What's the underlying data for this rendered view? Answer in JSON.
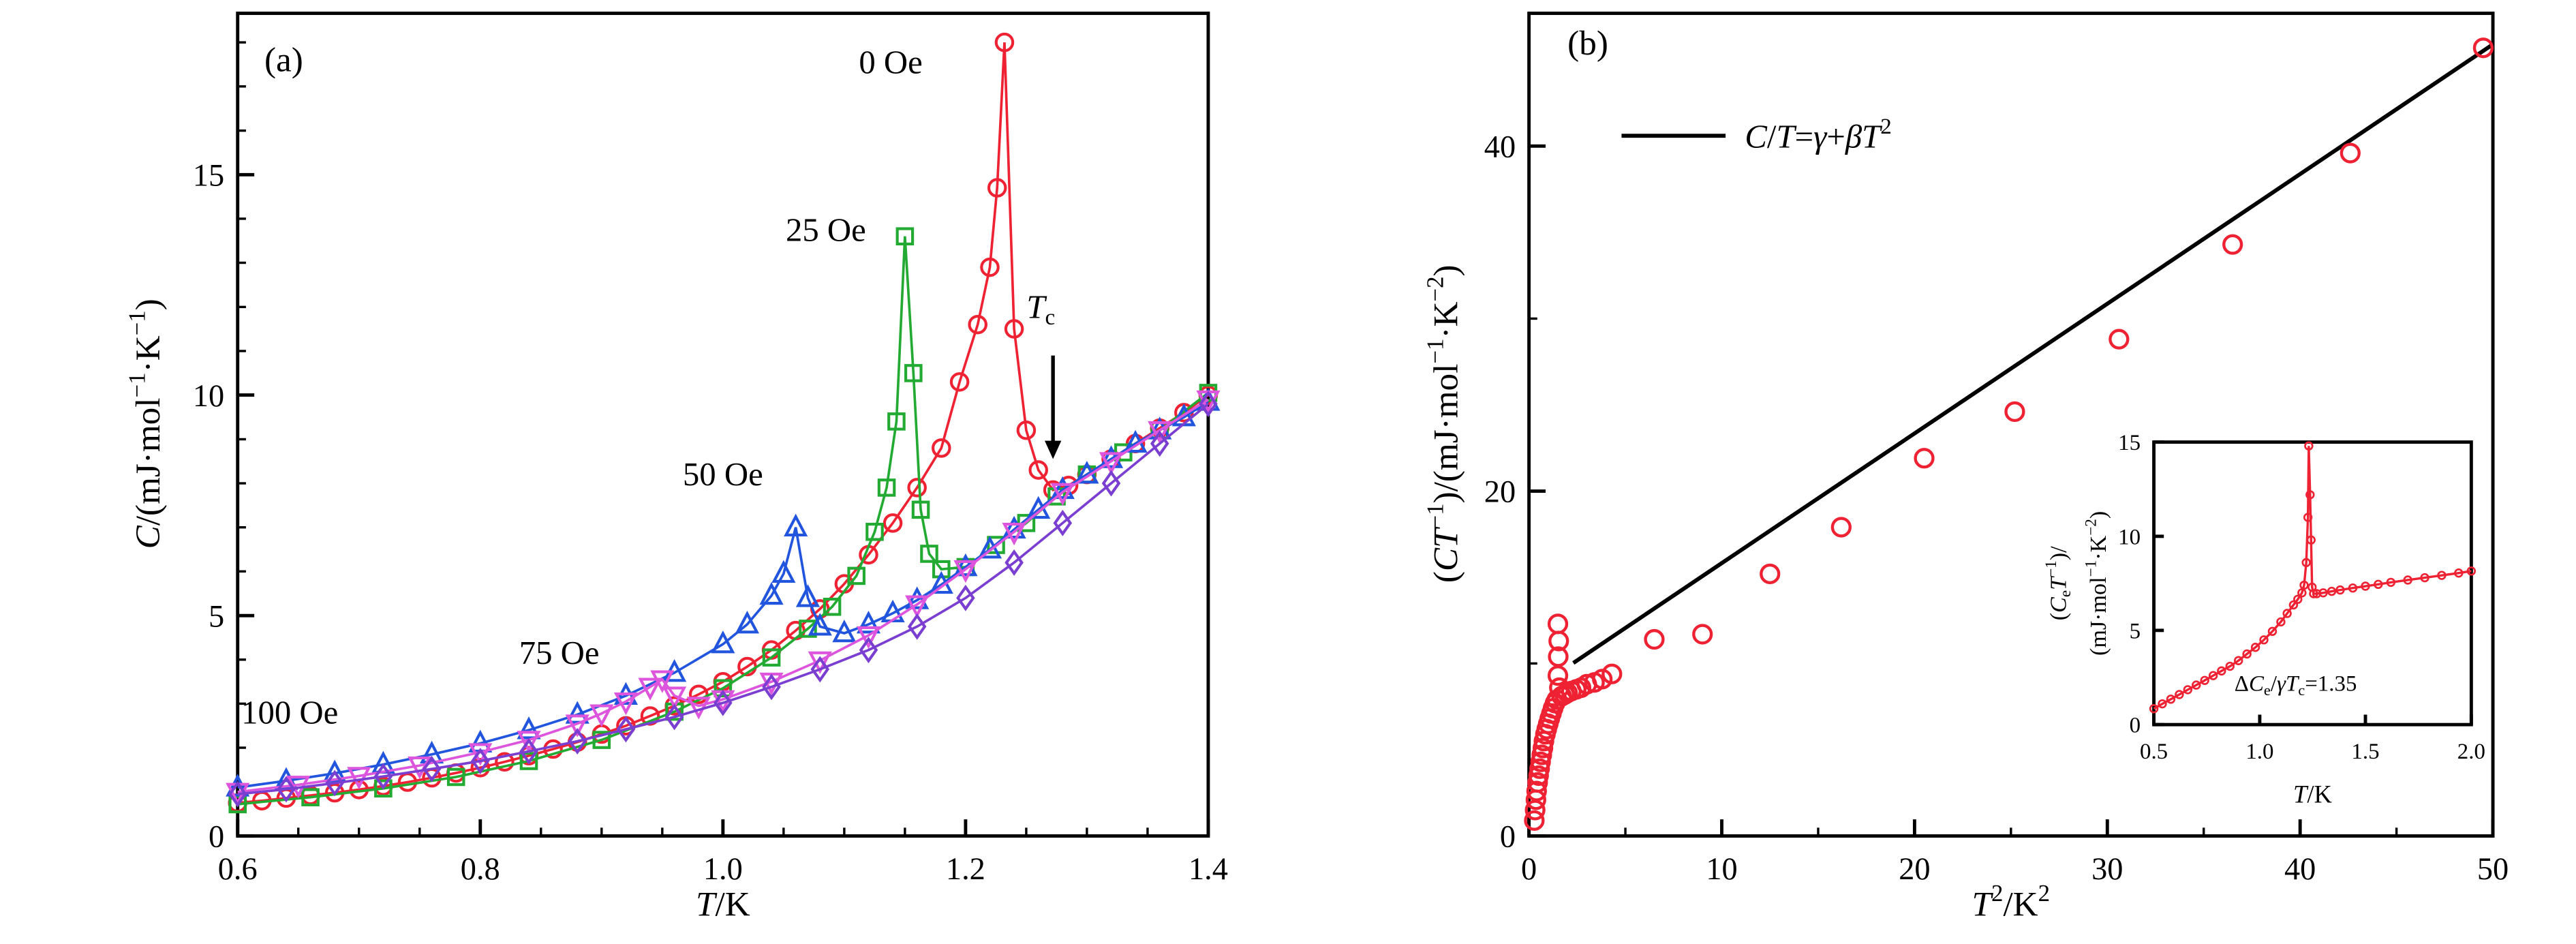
{
  "chart_data": [
    {
      "id": "a",
      "type": "line",
      "panel_label": "(a)",
      "panel_label_pos": [
        0.622,
        17.35
      ],
      "xlabel": "*T*/K",
      "ylabel": "*C*/(mJ·mol^{−1}·K^{−1})",
      "xlim": [
        0.6,
        1.4
      ],
      "ylim": [
        0,
        18.66
      ],
      "xtick_values": [
        0.6,
        0.8,
        1.0,
        1.2,
        1.4
      ],
      "xtick_labels": [
        "0.6",
        "0.8",
        "1.0",
        "1.2",
        "1.4"
      ],
      "ytick_values": [
        0,
        5,
        10,
        15
      ],
      "ytick_labels": [
        "0",
        "5",
        "10",
        "15"
      ],
      "x_minor_step": 0.05,
      "y_minor_step": 1,
      "tc_annotation": {
        "text": "*T*_{c}",
        "x": 1.272,
        "y_from": 10.9,
        "y_to": 8.55,
        "label_x": 1.262,
        "label_y": 11.75
      },
      "series": [
        {
          "name": "0 Oe",
          "marker": "circle",
          "color": "#ee2233",
          "label": "0 Oe",
          "label_pos": [
            1.112,
            17.3
          ],
          "label_anchor": "start",
          "points": [
            [
              0.6,
              0.75
            ],
            [
              0.62,
              0.8
            ],
            [
              0.64,
              0.86
            ],
            [
              0.66,
              0.92
            ],
            [
              0.68,
              0.98
            ],
            [
              0.7,
              1.05
            ],
            [
              0.72,
              1.13
            ],
            [
              0.74,
              1.22
            ],
            [
              0.76,
              1.32
            ],
            [
              0.78,
              1.43
            ],
            [
              0.8,
              1.55
            ],
            [
              0.82,
              1.68
            ],
            [
              0.84,
              1.82
            ],
            [
              0.86,
              1.97
            ],
            [
              0.88,
              2.13
            ],
            [
              0.9,
              2.31
            ],
            [
              0.92,
              2.5
            ],
            [
              0.94,
              2.72
            ],
            [
              0.96,
              2.95
            ],
            [
              0.98,
              3.21
            ],
            [
              1.0,
              3.5
            ],
            [
              1.02,
              3.84
            ],
            [
              1.04,
              4.22
            ],
            [
              1.06,
              4.66
            ],
            [
              1.08,
              5.15
            ],
            [
              1.1,
              5.72
            ],
            [
              1.12,
              6.38
            ],
            [
              1.14,
              7.1
            ],
            [
              1.16,
              7.9
            ],
            [
              1.18,
              8.8
            ],
            [
              1.195,
              10.3
            ],
            [
              1.21,
              11.6
            ],
            [
              1.22,
              12.9
            ],
            [
              1.226,
              14.7
            ],
            [
              1.232,
              18.0
            ],
            [
              1.24,
              11.5
            ],
            [
              1.25,
              9.2
            ],
            [
              1.26,
              8.3
            ],
            [
              1.272,
              7.85
            ],
            [
              1.285,
              7.95
            ],
            [
              1.3,
              8.2
            ],
            [
              1.32,
              8.55
            ],
            [
              1.34,
              8.9
            ],
            [
              1.36,
              9.25
            ],
            [
              1.38,
              9.6
            ],
            [
              1.4,
              10.0
            ]
          ]
        },
        {
          "name": "25 Oe",
          "marker": "square",
          "color": "#22aa33",
          "label": "25 Oe",
          "label_pos": [
            1.118,
            13.5
          ],
          "label_anchor": "end",
          "points": [
            [
              0.6,
              0.72
            ],
            [
              0.66,
              0.88
            ],
            [
              0.72,
              1.08
            ],
            [
              0.78,
              1.34
            ],
            [
              0.84,
              1.7
            ],
            [
              0.9,
              2.18
            ],
            [
              0.96,
              2.82
            ],
            [
              1.0,
              3.35
            ],
            [
              1.04,
              4.05
            ],
            [
              1.07,
              4.7
            ],
            [
              1.09,
              5.2
            ],
            [
              1.11,
              5.9
            ],
            [
              1.125,
              6.9
            ],
            [
              1.135,
              7.9
            ],
            [
              1.143,
              9.4
            ],
            [
              1.15,
              13.6
            ],
            [
              1.157,
              10.5
            ],
            [
              1.163,
              7.4
            ],
            [
              1.17,
              6.4
            ],
            [
              1.18,
              6.05
            ],
            [
              1.2,
              6.1
            ],
            [
              1.225,
              6.6
            ],
            [
              1.25,
              7.1
            ],
            [
              1.275,
              7.7
            ],
            [
              1.3,
              8.2
            ],
            [
              1.33,
              8.7
            ],
            [
              1.36,
              9.2
            ],
            [
              1.4,
              10.05
            ]
          ]
        },
        {
          "name": "50 Oe",
          "marker": "triangle-up",
          "color": "#2255dd",
          "label": "50 Oe",
          "label_pos": [
            1.0,
            7.95
          ],
          "label_anchor": "middle",
          "points": [
            [
              0.6,
              1.1
            ],
            [
              0.64,
              1.25
            ],
            [
              0.68,
              1.42
            ],
            [
              0.72,
              1.62
            ],
            [
              0.76,
              1.85
            ],
            [
              0.8,
              2.1
            ],
            [
              0.84,
              2.4
            ],
            [
              0.88,
              2.75
            ],
            [
              0.92,
              3.18
            ],
            [
              0.96,
              3.7
            ],
            [
              1.0,
              4.35
            ],
            [
              1.02,
              4.8
            ],
            [
              1.04,
              5.45
            ],
            [
              1.05,
              5.95
            ],
            [
              1.06,
              7.0
            ],
            [
              1.07,
              5.4
            ],
            [
              1.08,
              4.75
            ],
            [
              1.1,
              4.6
            ],
            [
              1.12,
              4.8
            ],
            [
              1.14,
              5.05
            ],
            [
              1.16,
              5.35
            ],
            [
              1.18,
              5.7
            ],
            [
              1.2,
              6.1
            ],
            [
              1.22,
              6.5
            ],
            [
              1.24,
              6.95
            ],
            [
              1.26,
              7.4
            ],
            [
              1.28,
              7.85
            ],
            [
              1.3,
              8.2
            ],
            [
              1.32,
              8.55
            ],
            [
              1.34,
              8.9
            ],
            [
              1.36,
              9.2
            ],
            [
              1.38,
              9.5
            ],
            [
              1.4,
              9.85
            ]
          ]
        },
        {
          "name": "75 Oe",
          "marker": "triangle-down",
          "color": "#dd55dd",
          "label": "75 Oe",
          "label_pos": [
            0.865,
            3.9
          ],
          "label_anchor": "middle",
          "points": [
            [
              0.6,
              1.0
            ],
            [
              0.65,
              1.16
            ],
            [
              0.7,
              1.36
            ],
            [
              0.75,
              1.6
            ],
            [
              0.8,
              1.9
            ],
            [
              0.84,
              2.18
            ],
            [
              0.88,
              2.55
            ],
            [
              0.9,
              2.78
            ],
            [
              0.92,
              3.05
            ],
            [
              0.94,
              3.38
            ],
            [
              0.95,
              3.55
            ],
            [
              0.96,
              3.18
            ],
            [
              0.98,
              2.95
            ],
            [
              1.0,
              3.1
            ],
            [
              1.04,
              3.5
            ],
            [
              1.08,
              3.98
            ],
            [
              1.12,
              4.55
            ],
            [
              1.16,
              5.25
            ],
            [
              1.2,
              6.05
            ],
            [
              1.24,
              6.9
            ],
            [
              1.28,
              7.8
            ],
            [
              1.32,
              8.5
            ],
            [
              1.36,
              9.2
            ],
            [
              1.4,
              9.9
            ]
          ]
        },
        {
          "name": "100 Oe",
          "marker": "diamond",
          "color": "#7a3fd1",
          "label": "100 Oe",
          "label_color": "#2b3fd1",
          "label_pos": [
            0.603,
            2.55
          ],
          "label_anchor": "start",
          "points": [
            [
              0.6,
              0.95
            ],
            [
              0.64,
              1.06
            ],
            [
              0.68,
              1.2
            ],
            [
              0.72,
              1.35
            ],
            [
              0.76,
              1.52
            ],
            [
              0.8,
              1.7
            ],
            [
              0.84,
              1.92
            ],
            [
              0.88,
              2.15
            ],
            [
              0.92,
              2.42
            ],
            [
              0.96,
              2.7
            ],
            [
              1.0,
              3.02
            ],
            [
              1.04,
              3.38
            ],
            [
              1.08,
              3.78
            ],
            [
              1.12,
              4.22
            ],
            [
              1.16,
              4.75
            ],
            [
              1.2,
              5.4
            ],
            [
              1.24,
              6.2
            ],
            [
              1.28,
              7.1
            ],
            [
              1.32,
              8.0
            ],
            [
              1.36,
              8.9
            ],
            [
              1.4,
              9.8
            ]
          ]
        }
      ]
    },
    {
      "id": "b",
      "type": "scatter",
      "panel_label": "(b)",
      "panel_label_pos": [
        2.0,
        45.3
      ],
      "xlabel": "*T*^{2}/K^{2}",
      "ylabel": "(*CT*^{−1})/(mJ·mol^{−1}·K^{−2})",
      "xlim": [
        0,
        50
      ],
      "ylim": [
        0,
        47.7
      ],
      "xtick_values": [
        0,
        10,
        20,
        30,
        40,
        50
      ],
      "xtick_labels": [
        "0",
        "10",
        "20",
        "30",
        "40",
        "50"
      ],
      "ytick_values": [
        0,
        20,
        40
      ],
      "ytick_labels": [
        "0",
        "20",
        "40"
      ],
      "x_minor_step": 5,
      "y_minor_step": 10,
      "color": "#ee2233",
      "points": [
        [
          0.28,
          0.9
        ],
        [
          0.32,
          1.5
        ],
        [
          0.36,
          2.1
        ],
        [
          0.4,
          2.6
        ],
        [
          0.45,
          3.1
        ],
        [
          0.5,
          3.5
        ],
        [
          0.55,
          3.9
        ],
        [
          0.6,
          4.3
        ],
        [
          0.66,
          4.7
        ],
        [
          0.72,
          5.1
        ],
        [
          0.78,
          5.5
        ],
        [
          0.85,
          5.9
        ],
        [
          0.92,
          6.2
        ],
        [
          1.0,
          6.5
        ],
        [
          1.08,
          6.8
        ],
        [
          1.16,
          7.1
        ],
        [
          1.25,
          7.4
        ],
        [
          1.35,
          7.7
        ],
        [
          1.45,
          7.9
        ],
        [
          1.5,
          9.3
        ],
        [
          1.52,
          10.4
        ],
        [
          1.54,
          11.3
        ],
        [
          1.5,
          12.3
        ],
        [
          1.58,
          8.6
        ],
        [
          1.7,
          8.1
        ],
        [
          1.85,
          8.2
        ],
        [
          2.0,
          8.3
        ],
        [
          2.2,
          8.4
        ],
        [
          2.45,
          8.5
        ],
        [
          2.7,
          8.6
        ],
        [
          3.0,
          8.8
        ],
        [
          3.4,
          8.9
        ],
        [
          3.8,
          9.1
        ],
        [
          4.3,
          9.4
        ],
        [
          6.5,
          11.4
        ],
        [
          9.0,
          11.7
        ],
        [
          12.5,
          15.2
        ],
        [
          16.2,
          17.9
        ],
        [
          20.5,
          21.9
        ],
        [
          25.2,
          24.6
        ],
        [
          30.6,
          28.8
        ],
        [
          36.5,
          34.3
        ],
        [
          42.6,
          39.6
        ],
        [
          49.5,
          45.7
        ]
      ],
      "fit": {
        "label": "*C*/*T*=*γ*+*βT*^{2}",
        "gamma": 8.3,
        "beta": 0.752,
        "x_start": 2.3,
        "x_end": 50,
        "legend_x1": 4.8,
        "legend_x2": 10.2,
        "legend_y": 40.6,
        "legend_text_x": 11.2
      },
      "inset": {
        "xlabel": "*T*/K",
        "ylabel_lines": [
          "(*C*_{e}*T*^{−1})/",
          "(mJ·mol^{−1}·K^{−2})"
        ],
        "xlim": [
          0.5,
          2.0
        ],
        "ylim": [
          0,
          15
        ],
        "xtick_values": [
          0.5,
          1.0,
          1.5,
          2.0
        ],
        "xtick_labels": [
          "0.5",
          "1.0",
          "1.5",
          "2.0"
        ],
        "ytick_values": [
          0,
          5,
          10,
          15
        ],
        "ytick_labels": [
          "0",
          "5",
          "10",
          "15"
        ],
        "annotation": {
          "text": "Δ*C*_{e}/*γT*_{c}=1.35",
          "x": 1.17,
          "y": 1.8
        },
        "color": "#ee2233",
        "points": [
          [
            0.5,
            0.85
          ],
          [
            0.54,
            1.1
          ],
          [
            0.58,
            1.35
          ],
          [
            0.62,
            1.6
          ],
          [
            0.66,
            1.85
          ],
          [
            0.7,
            2.1
          ],
          [
            0.74,
            2.35
          ],
          [
            0.78,
            2.6
          ],
          [
            0.82,
            2.85
          ],
          [
            0.86,
            3.1
          ],
          [
            0.9,
            3.4
          ],
          [
            0.94,
            3.75
          ],
          [
            0.98,
            4.1
          ],
          [
            1.02,
            4.5
          ],
          [
            1.06,
            4.95
          ],
          [
            1.1,
            5.45
          ],
          [
            1.13,
            5.9
          ],
          [
            1.16,
            6.35
          ],
          [
            1.18,
            6.65
          ],
          [
            1.2,
            7.0
          ],
          [
            1.21,
            7.4
          ],
          [
            1.22,
            8.6
          ],
          [
            1.228,
            11.0
          ],
          [
            1.232,
            14.8
          ],
          [
            1.238,
            12.2
          ],
          [
            1.243,
            9.8
          ],
          [
            1.248,
            7.3
          ],
          [
            1.255,
            6.95
          ],
          [
            1.27,
            6.95
          ],
          [
            1.3,
            7.0
          ],
          [
            1.34,
            7.08
          ],
          [
            1.38,
            7.15
          ],
          [
            1.44,
            7.25
          ],
          [
            1.5,
            7.35
          ],
          [
            1.56,
            7.45
          ],
          [
            1.62,
            7.55
          ],
          [
            1.7,
            7.68
          ],
          [
            1.78,
            7.8
          ],
          [
            1.86,
            7.92
          ],
          [
            1.94,
            8.05
          ],
          [
            2.0,
            8.15
          ]
        ]
      }
    }
  ]
}
